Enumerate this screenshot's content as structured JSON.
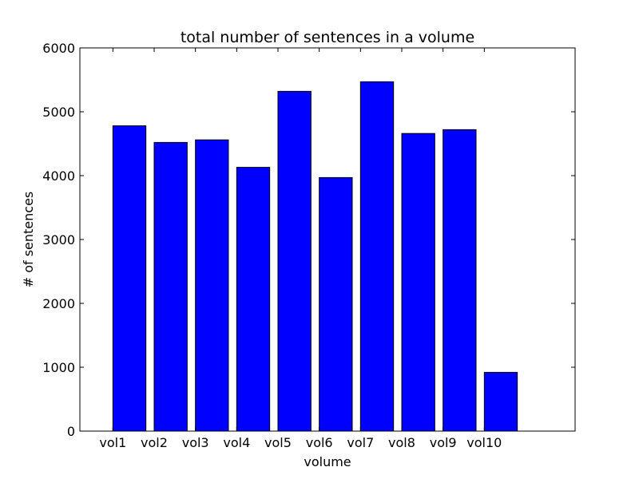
{
  "chart_data": {
    "type": "bar",
    "title": "total number of sentences in a volume",
    "xlabel": "volume",
    "ylabel": "# of sentences",
    "categories": [
      "vol1",
      "vol2",
      "vol3",
      "vol4",
      "vol5",
      "vol6",
      "vol7",
      "vol8",
      "vol9",
      "vol10"
    ],
    "values": [
      4780,
      4520,
      4560,
      4130,
      5320,
      3970,
      5470,
      4660,
      4720,
      920
    ],
    "ylim": [
      0,
      6000
    ],
    "yticks": [
      0,
      1000,
      2000,
      3000,
      4000,
      5000,
      6000
    ],
    "grid": false,
    "legend": "none",
    "colors": {
      "bar_fill": "#0000ff",
      "bar_edge": "#000000"
    }
  }
}
